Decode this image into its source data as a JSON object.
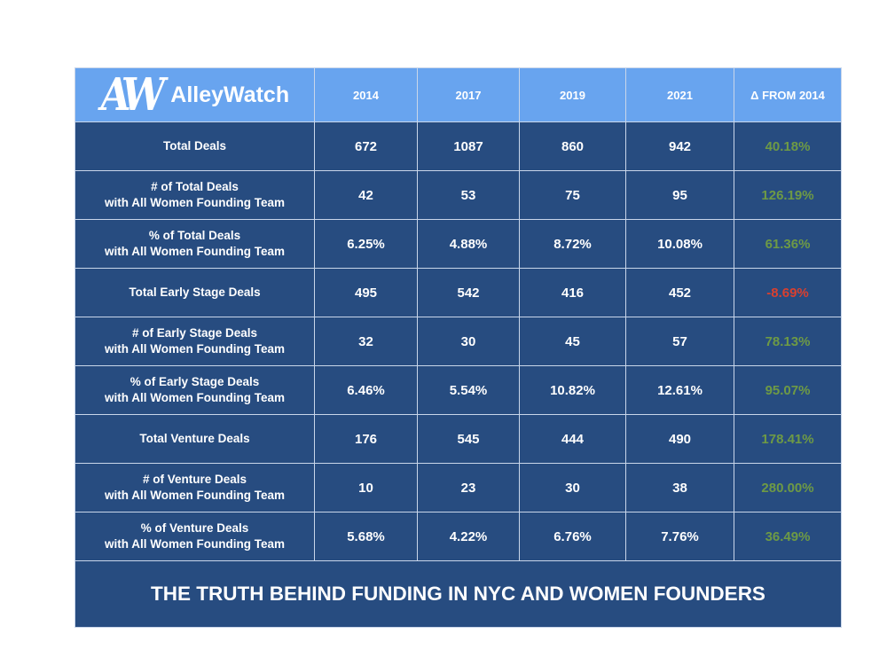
{
  "logo": {
    "mark": "AW",
    "text": "AlleyWatch"
  },
  "chart_data": {
    "type": "table",
    "title": "THE TRUTH BEHIND FUNDING IN NYC AND WOMEN FOUNDERS",
    "columns": [
      "2014",
      "2017",
      "2019",
      "2021",
      "Δ FROM 2014"
    ],
    "rows": [
      {
        "label": [
          "Total Deals"
        ],
        "values": [
          "672",
          "1087",
          "860",
          "942"
        ],
        "delta": "40.18%",
        "delta_sign": "pos"
      },
      {
        "label": [
          "# of Total Deals",
          "with All Women Founding Team"
        ],
        "values": [
          "42",
          "53",
          "75",
          "95"
        ],
        "delta": "126.19%",
        "delta_sign": "pos"
      },
      {
        "label": [
          "% of Total Deals",
          "with All Women Founding Team"
        ],
        "values": [
          "6.25%",
          "4.88%",
          "8.72%",
          "10.08%"
        ],
        "delta": "61.36%",
        "delta_sign": "pos"
      },
      {
        "label": [
          "Total Early Stage Deals"
        ],
        "values": [
          "495",
          "542",
          "416",
          "452"
        ],
        "delta": "-8.69%",
        "delta_sign": "neg"
      },
      {
        "label": [
          "# of Early Stage Deals",
          "with All Women Founding Team"
        ],
        "values": [
          "32",
          "30",
          "45",
          "57"
        ],
        "delta": "78.13%",
        "delta_sign": "pos"
      },
      {
        "label": [
          "% of Early Stage Deals",
          "with All Women Founding Team"
        ],
        "values": [
          "6.46%",
          "5.54%",
          "10.82%",
          "12.61%"
        ],
        "delta": "95.07%",
        "delta_sign": "pos"
      },
      {
        "label": [
          "Total Venture Deals"
        ],
        "values": [
          "176",
          "545",
          "444",
          "490"
        ],
        "delta": "178.41%",
        "delta_sign": "pos"
      },
      {
        "label": [
          "# of Venture Deals",
          "with All Women Founding Team"
        ],
        "values": [
          "10",
          "23",
          "30",
          "38"
        ],
        "delta": "280.00%",
        "delta_sign": "pos"
      },
      {
        "label": [
          "% of Venture Deals",
          "with All Women Founding Team"
        ],
        "values": [
          "5.68%",
          "4.22%",
          "6.76%",
          "7.76%"
        ],
        "delta": "36.49%",
        "delta_sign": "pos"
      }
    ]
  },
  "colors": {
    "header": "#68a4ef",
    "body": "#274c80",
    "positive": "#6e9a45",
    "negative": "#d9402f"
  }
}
